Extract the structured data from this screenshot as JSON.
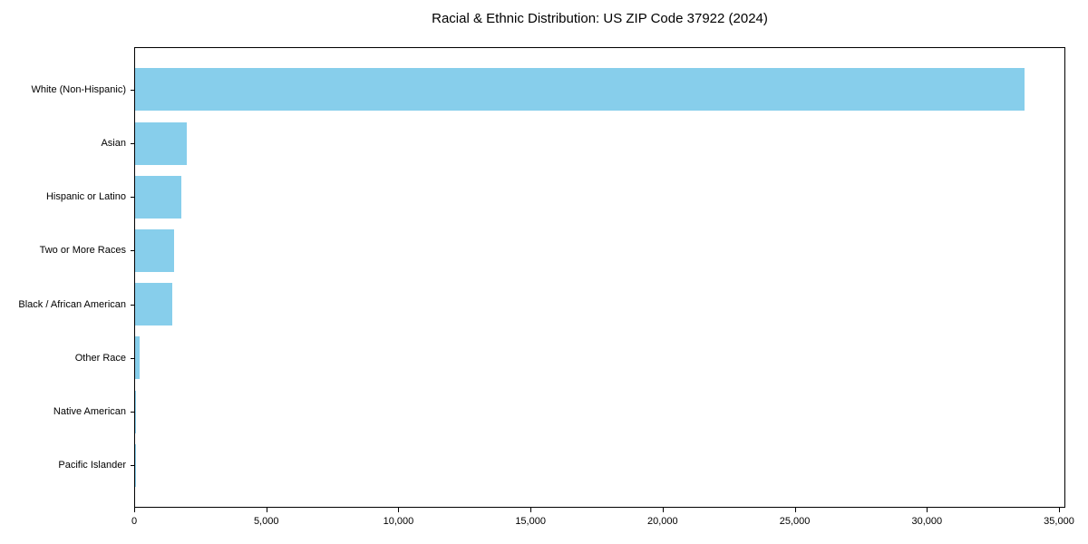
{
  "chart_data": {
    "type": "bar",
    "orientation": "horizontal",
    "title": "Racial & Ethnic Distribution: US ZIP Code 37922 (2024)",
    "categories": [
      "White (Non-Hispanic)",
      "Asian",
      "Hispanic or Latino",
      "Two or More Races",
      "Black / African American",
      "Other Race",
      "Native American",
      "Pacific Islander"
    ],
    "values": [
      33660,
      1950,
      1760,
      1480,
      1400,
      170,
      30,
      10
    ],
    "xlabel": "",
    "ylabel": "",
    "xlim": [
      0,
      35000
    ],
    "xticks": [
      0,
      5000,
      10000,
      15000,
      20000,
      25000,
      30000,
      35000
    ],
    "xtick_labels": [
      "0",
      "5,000",
      "10,000",
      "15,000",
      "20,000",
      "25,000",
      "30,000",
      "35,000"
    ],
    "bar_color": "#87CEEB",
    "axis_color": "#000000",
    "text_color": "#000000",
    "grid": false,
    "legend": null
  }
}
